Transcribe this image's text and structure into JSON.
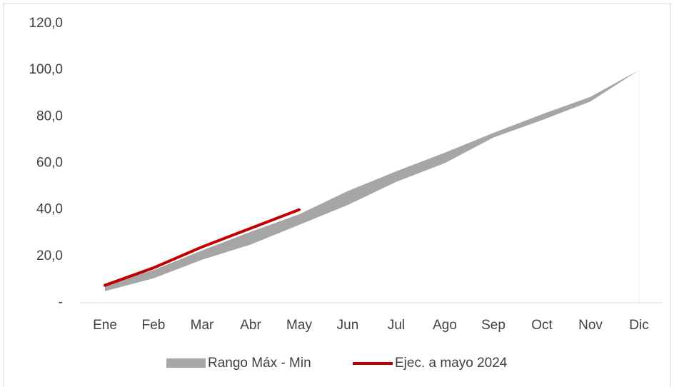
{
  "chart_data": {
    "type": "line",
    "categories": [
      "Ene",
      "Feb",
      "Mar",
      "Abr",
      "May",
      "Jun",
      "Jul",
      "Ago",
      "Sep",
      "Oct",
      "Nov",
      "Dic"
    ],
    "band": {
      "name": "Rango Máx - Min",
      "color": "#a6a6a6",
      "min": [
        5,
        10.5,
        18.5,
        25,
        33.5,
        42,
        52,
        60,
        71,
        78.5,
        86.5,
        100
      ],
      "max": [
        8,
        14,
        22.5,
        30.5,
        38,
        48,
        56.5,
        64.5,
        73,
        81,
        88.5,
        100
      ]
    },
    "series": [
      {
        "name": "Ejec. a mayo 2024",
        "color": "#c00000",
        "values": [
          7.5,
          15,
          24,
          32,
          40,
          null,
          null,
          null,
          null,
          null,
          null,
          null
        ]
      }
    ],
    "ylim": [
      0,
      120
    ],
    "yticks": [
      {
        "value": 0,
        "label": "-"
      },
      {
        "value": 20,
        "label": "20,0"
      },
      {
        "value": 40,
        "label": "40,0"
      },
      {
        "value": 60,
        "label": "60,0"
      },
      {
        "value": 80,
        "label": "80,0"
      },
      {
        "value": 100,
        "label": "100,0"
      },
      {
        "value": 120,
        "label": "120,0"
      }
    ],
    "legend": "bottom"
  }
}
